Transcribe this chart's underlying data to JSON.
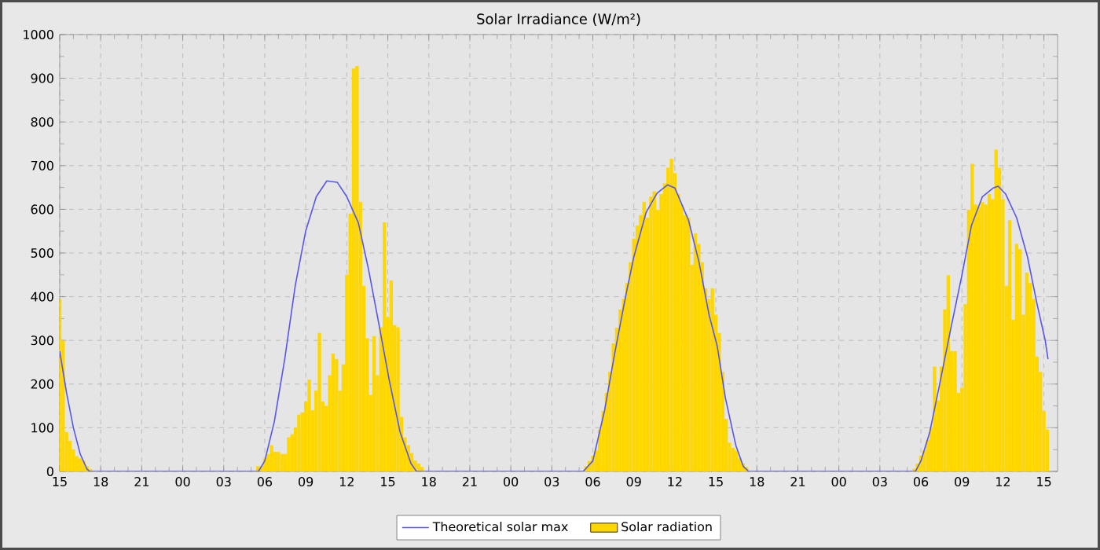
{
  "chart_data": {
    "type": "bar",
    "title": "Solar Irradiance (W/m²)",
    "xlim": [
      15,
      88
    ],
    "ylim": [
      0,
      1000
    ],
    "xticks": [
      {
        "value": 15,
        "label": "15"
      },
      {
        "value": 18,
        "label": "18"
      },
      {
        "value": 21,
        "label": "21"
      },
      {
        "value": 24,
        "label": "00"
      },
      {
        "value": 27,
        "label": "03"
      },
      {
        "value": 30,
        "label": "06"
      },
      {
        "value": 33,
        "label": "09"
      },
      {
        "value": 36,
        "label": "12"
      },
      {
        "value": 39,
        "label": "15"
      },
      {
        "value": 42,
        "label": "18"
      },
      {
        "value": 45,
        "label": "21"
      },
      {
        "value": 48,
        "label": "00"
      },
      {
        "value": 51,
        "label": "03"
      },
      {
        "value": 54,
        "label": "06"
      },
      {
        "value": 57,
        "label": "09"
      },
      {
        "value": 60,
        "label": "12"
      },
      {
        "value": 63,
        "label": "15"
      },
      {
        "value": 66,
        "label": "18"
      },
      {
        "value": 69,
        "label": "21"
      },
      {
        "value": 72,
        "label": "00"
      },
      {
        "value": 75,
        "label": "03"
      },
      {
        "value": 78,
        "label": "06"
      },
      {
        "value": 81,
        "label": "09"
      },
      {
        "value": 84,
        "label": "12"
      },
      {
        "value": 87,
        "label": "15"
      }
    ],
    "yticks": [
      0,
      100,
      200,
      300,
      400,
      500,
      600,
      700,
      800,
      900,
      1000
    ],
    "grid": true,
    "legend": "bottom",
    "series": [
      {
        "name": "Theoretical solar max",
        "type": "line",
        "color": "#5555ee",
        "x": [
          15,
          15.5,
          16.0,
          16.5,
          17.0,
          17.2,
          29.54,
          30,
          30.7,
          31.46,
          32.23,
          33,
          33.77,
          34.54,
          35.3,
          36,
          36.85,
          37.6,
          38.4,
          39.1,
          39.9,
          40.7,
          41.1,
          53.3,
          54,
          54.85,
          55.6,
          56.4,
          57,
          57.9,
          58.7,
          59.46,
          60,
          61,
          61.77,
          62.5,
          63.1,
          63.7,
          64.46,
          65,
          65.4,
          77.6,
          78,
          78.65,
          79.4,
          80.2,
          81,
          81.7,
          82.5,
          83.3,
          83.65,
          84.2,
          85,
          85.8,
          86.5,
          87.1,
          87.3
        ],
        "values": [
          275,
          180,
          100,
          40,
          5,
          0,
          0,
          24,
          114,
          257,
          425,
          551,
          629,
          665,
          662,
          629,
          569,
          461,
          329,
          210,
          90,
          18,
          0,
          0,
          24,
          138,
          270,
          401,
          491,
          593,
          637,
          656,
          649,
          575,
          479,
          359,
          287,
          168,
          60,
          12,
          0,
          0,
          24,
          90,
          204,
          329,
          449,
          563,
          629,
          649,
          653,
          635,
          581,
          491,
          383,
          299,
          257
        ]
      },
      {
        "name": "Solar radiation",
        "color": "#ffd700",
        "x": [
          15,
          15.25,
          15.5,
          15.75,
          16.0,
          16.25,
          16.5,
          16.75,
          17.0,
          17.25,
          29.5,
          29.75,
          30.0,
          30.25,
          30.5,
          30.75,
          31.0,
          31.25,
          31.5,
          31.75,
          32.0,
          32.25,
          32.5,
          32.75,
          33.0,
          33.25,
          33.5,
          33.75,
          34.0,
          34.25,
          34.5,
          34.75,
          35.0,
          35.25,
          35.5,
          35.75,
          36.0,
          36.25,
          36.5,
          36.75,
          37.0,
          37.25,
          37.5,
          37.75,
          38.0,
          38.25,
          38.5,
          38.75,
          39.0,
          39.25,
          39.5,
          39.75,
          40.0,
          40.25,
          40.5,
          40.75,
          41.0,
          41.25,
          41.5,
          53.5,
          53.75,
          54.0,
          54.25,
          54.5,
          54.75,
          55.0,
          55.25,
          55.5,
          55.75,
          56.0,
          56.25,
          56.5,
          56.75,
          57.0,
          57.25,
          57.5,
          57.75,
          58.0,
          58.25,
          58.5,
          58.75,
          59.0,
          59.25,
          59.5,
          59.75,
          60.0,
          60.25,
          60.5,
          60.75,
          61.0,
          61.25,
          61.5,
          61.75,
          62.0,
          62.25,
          62.5,
          62.75,
          63.0,
          63.25,
          63.5,
          63.75,
          64.0,
          64.25,
          64.5,
          64.75,
          65.0,
          65.25,
          77.5,
          77.75,
          78.0,
          78.25,
          78.5,
          78.75,
          79.0,
          79.25,
          79.5,
          79.75,
          80.0,
          80.25,
          80.5,
          80.75,
          81.0,
          81.25,
          81.5,
          81.75,
          82.0,
          82.25,
          82.5,
          82.75,
          83.0,
          83.25,
          83.5,
          83.75,
          84.0,
          84.25,
          84.5,
          84.75,
          85.0,
          85.25,
          85.5,
          85.75,
          86.0,
          86.25,
          86.5,
          86.75,
          87.0,
          87.25
        ],
        "values": [
          395,
          300,
          90,
          70,
          50,
          35,
          30,
          25,
          12,
          5,
          12,
          12,
          30,
          40,
          60,
          45,
          45,
          40,
          40,
          78,
          85,
          100,
          130,
          135,
          160,
          210,
          140,
          185,
          317,
          160,
          150,
          220,
          270,
          257,
          185,
          245,
          450,
          590,
          922,
          928,
          617,
          425,
          305,
          175,
          310,
          220,
          330,
          570,
          353,
          437,
          335,
          330,
          125,
          78,
          60,
          42,
          25,
          18,
          10,
          12,
          24,
          36,
          48,
          96,
          138,
          180,
          228,
          293,
          329,
          371,
          395,
          431,
          479,
          533,
          563,
          587,
          617,
          581,
          629,
          641,
          599,
          635,
          659,
          695,
          716,
          683,
          635,
          611,
          587,
          581,
          473,
          545,
          521,
          479,
          419,
          395,
          419,
          359,
          317,
          228,
          120,
          66,
          54,
          48,
          30,
          18,
          10,
          6,
          18,
          36,
          48,
          72,
          102,
          240,
          162,
          240,
          371,
          449,
          275,
          275,
          180,
          192,
          383,
          599,
          704,
          611,
          605,
          617,
          611,
          635,
          623,
          737,
          695,
          623,
          425,
          575,
          347,
          521,
          509,
          359,
          455,
          431,
          395,
          263,
          228,
          138,
          96
        ]
      }
    ]
  }
}
